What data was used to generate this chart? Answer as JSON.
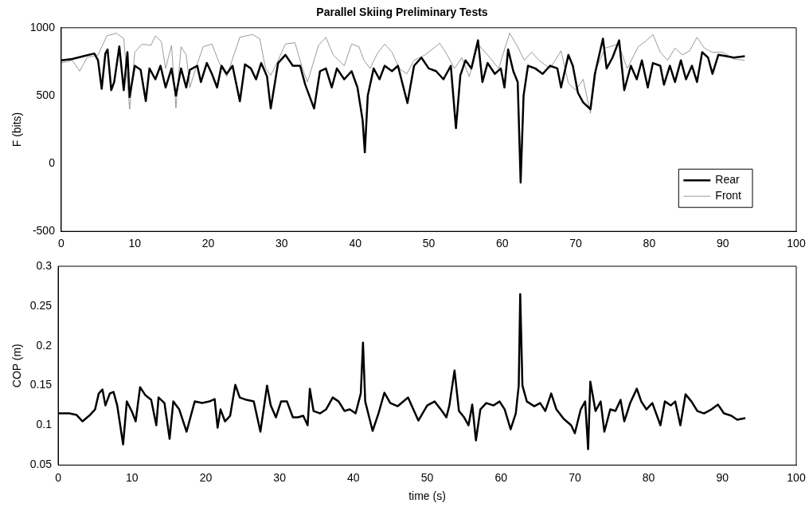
{
  "chart_data": [
    {
      "type": "line",
      "title": "Parallel Skiing Preliminary Tests",
      "ylabel": "F (bits)",
      "xlim": [
        0,
        100
      ],
      "xticks": [
        0,
        10,
        20,
        30,
        40,
        50,
        60,
        70,
        80,
        90,
        100
      ],
      "ylim": [
        -500,
        1000
      ],
      "yticks": [
        -500,
        0,
        500,
        1000
      ],
      "legend": "bottom right",
      "series": [
        {
          "name": "Rear",
          "color": "#000000",
          "x": [
            0,
            1.5,
            3,
            4.5,
            5,
            5.5,
            6,
            6.3,
            6.8,
            7.2,
            7.9,
            8.5,
            9,
            9.3,
            10,
            10.8,
            11.5,
            12,
            12.8,
            13.5,
            14.2,
            15,
            15.6,
            16.3,
            17,
            17.5,
            18.5,
            19,
            19.8,
            20.5,
            21.2,
            21.8,
            22.5,
            23.3,
            24.3,
            25,
            25.8,
            26.5,
            27.2,
            28,
            28.5,
            29.5,
            30.5,
            31.5,
            32.5,
            33.2,
            34.4,
            35.2,
            36,
            36.8,
            37.5,
            38.5,
            39.5,
            40.3,
            41,
            41.3,
            41.7,
            42.5,
            43.3,
            44,
            45,
            45.8,
            47.1,
            48,
            49,
            50,
            51,
            52,
            53,
            53.7,
            54.3,
            55,
            55.8,
            56.7,
            57.3,
            58,
            59,
            59.8,
            60.3,
            60.8,
            61.5,
            62.1,
            62.5,
            62.9,
            63.5,
            64.5,
            65.5,
            66.5,
            67.5,
            68,
            69,
            69.6,
            70.3,
            71,
            72,
            72.6,
            73.7,
            74.2,
            75,
            75.9,
            76.6,
            77.5,
            78.3,
            79,
            79.8,
            80.5,
            81.5,
            82,
            82.8,
            83.5,
            84.3,
            85,
            85.8,
            86.5,
            87.2,
            88,
            88.6,
            89.4,
            90.5,
            91.5,
            93
          ],
          "values": [
            760,
            770,
            790,
            810,
            760,
            550,
            810,
            840,
            540,
            600,
            862,
            540,
            820,
            490,
            720,
            690,
            460,
            700,
            620,
            720,
            560,
            700,
            500,
            700,
            560,
            690,
            720,
            600,
            740,
            660,
            560,
            720,
            660,
            720,
            458,
            730,
            700,
            620,
            740,
            640,
            405,
            740,
            800,
            720,
            720,
            580,
            405,
            680,
            700,
            560,
            700,
            620,
            680,
            560,
            320,
            82,
            500,
            700,
            620,
            720,
            680,
            720,
            445,
            720,
            780,
            700,
            680,
            620,
            720,
            260,
            650,
            760,
            700,
            907,
            600,
            740,
            660,
            700,
            560,
            840,
            680,
            600,
            -140,
            500,
            720,
            700,
            660,
            720,
            700,
            560,
            800,
            720,
            520,
            450,
            400,
            660,
            920,
            700,
            780,
            907,
            540,
            720,
            620,
            760,
            560,
            740,
            720,
            580,
            720,
            600,
            760,
            620,
            720,
            600,
            820,
            780,
            660,
            800,
            790,
            780,
            790
          ]
        },
        {
          "name": "Front",
          "color": "#808080",
          "x": [
            0,
            1.5,
            2.5,
            3.5,
            5,
            6.2,
            7.5,
            8.5,
            9.3,
            10,
            11,
            12.2,
            12.8,
            13.6,
            14.2,
            15,
            15.6,
            16.3,
            17,
            17.5,
            18.3,
            19.3,
            20.5,
            21.5,
            22.5,
            24.3,
            26,
            27,
            27.8,
            28.5,
            29.5,
            30.5,
            31.8,
            32.7,
            33.5,
            35,
            36,
            37,
            38.5,
            39.5,
            40.5,
            41.2,
            42,
            43,
            44,
            45,
            46,
            47,
            48,
            49.5,
            51.5,
            52.5,
            53.5,
            54.5,
            55.5,
            56.7,
            58,
            59.5,
            61,
            62,
            63,
            64,
            65,
            66.5,
            68,
            69,
            70,
            71,
            72,
            72.8,
            74,
            75.8,
            77,
            78.5,
            79.5,
            80.5,
            81.5,
            82.5,
            83.5,
            84.5,
            85.5,
            86.5,
            87.5,
            88.5,
            90,
            91.5,
            93
          ],
          "values": [
            740,
            760,
            680,
            780,
            800,
            940,
            960,
            920,
            400,
            820,
            880,
            870,
            940,
            900,
            700,
            870,
            410,
            860,
            800,
            560,
            700,
            860,
            880,
            740,
            640,
            930,
            950,
            920,
            700,
            650,
            760,
            880,
            890,
            720,
            600,
            870,
            930,
            800,
            720,
            880,
            860,
            760,
            700,
            810,
            880,
            820,
            700,
            660,
            760,
            800,
            886,
            800,
            700,
            780,
            640,
            880,
            800,
            700,
            960,
            870,
            760,
            820,
            760,
            700,
            830,
            590,
            540,
            620,
            371,
            700,
            850,
            880,
            700,
            860,
            900,
            950,
            820,
            760,
            850,
            800,
            830,
            930,
            850,
            820,
            820,
            770,
            760
          ]
        }
      ]
    },
    {
      "type": "line",
      "xlabel": "time (s)",
      "ylabel": "COP (m)",
      "xlim": [
        0,
        100
      ],
      "xticks": [
        0,
        10,
        20,
        30,
        40,
        50,
        60,
        70,
        80,
        90,
        100
      ],
      "ylim": [
        0.05,
        0.3
      ],
      "yticks": [
        0.05,
        0.1,
        0.15,
        0.2,
        0.25,
        0.3
      ],
      "series": [
        {
          "color": "#000000",
          "x": [
            0,
            1.5,
            2.5,
            3.3,
            4.2,
            5,
            5.5,
            6,
            6.4,
            7,
            7.5,
            8,
            8.8,
            9.3,
            10,
            10.5,
            11.1,
            11.8,
            12.6,
            13.3,
            13.6,
            14.4,
            15.1,
            15.6,
            16.4,
            17.4,
            18.5,
            19.5,
            20.5,
            21.2,
            21.6,
            22,
            22.6,
            23.3,
            24,
            24.6,
            25.5,
            26.5,
            27.4,
            28.3,
            28.8,
            29.5,
            30.2,
            31,
            31.8,
            32.5,
            33.2,
            33.8,
            34.1,
            34.6,
            35.5,
            36.3,
            37.2,
            38,
            38.8,
            39.5,
            40.3,
            41,
            41.3,
            41.6,
            42.6,
            43.4,
            44.2,
            45,
            46,
            47.4,
            48.8,
            50,
            51,
            52,
            52.6,
            53,
            53.7,
            54.3,
            55,
            55.6,
            56.1,
            56.6,
            57.2,
            58,
            59,
            59.8,
            60.5,
            61.3,
            62,
            62.4,
            62.6,
            62.9,
            63.5,
            64.5,
            65.3,
            66,
            66.8,
            67.5,
            68.5,
            69.5,
            70,
            70.8,
            71.4,
            71.8,
            72.1,
            72.8,
            73.5,
            74,
            74.8,
            75.5,
            76.2,
            76.7,
            77.5,
            78.4,
            79,
            79.7,
            80.5,
            81.6,
            82.2,
            83,
            83.6,
            84.3,
            85,
            85.8,
            86.6,
            87.5,
            88.5,
            89.4,
            90.2,
            91.2,
            92,
            93.1
          ],
          "values": [
            0.115,
            0.115,
            0.113,
            0.105,
            0.112,
            0.12,
            0.14,
            0.145,
            0.125,
            0.14,
            0.142,
            0.125,
            0.076,
            0.13,
            0.117,
            0.105,
            0.148,
            0.138,
            0.132,
            0.1,
            0.135,
            0.128,
            0.083,
            0.13,
            0.12,
            0.092,
            0.13,
            0.128,
            0.13,
            0.133,
            0.097,
            0.12,
            0.105,
            0.112,
            0.151,
            0.135,
            0.132,
            0.13,
            0.092,
            0.15,
            0.125,
            0.11,
            0.13,
            0.13,
            0.11,
            0.11,
            0.112,
            0.1,
            0.146,
            0.118,
            0.115,
            0.12,
            0.135,
            0.13,
            0.118,
            0.12,
            0.115,
            0.14,
            0.204,
            0.13,
            0.093,
            0.115,
            0.141,
            0.128,
            0.124,
            0.135,
            0.106,
            0.125,
            0.13,
            0.118,
            0.11,
            0.125,
            0.169,
            0.118,
            0.11,
            0.1,
            0.126,
            0.081,
            0.12,
            0.128,
            0.125,
            0.13,
            0.12,
            0.095,
            0.115,
            0.15,
            0.265,
            0.15,
            0.13,
            0.124,
            0.128,
            0.118,
            0.14,
            0.12,
            0.108,
            0.1,
            0.09,
            0.12,
            0.13,
            0.07,
            0.155,
            0.118,
            0.13,
            0.092,
            0.12,
            0.118,
            0.132,
            0.105,
            0.128,
            0.146,
            0.13,
            0.12,
            0.128,
            0.1,
            0.13,
            0.125,
            0.13,
            0.1,
            0.139,
            0.13,
            0.118,
            0.115,
            0.12,
            0.126,
            0.115,
            0.112,
            0.107,
            0.109
          ]
        }
      ]
    }
  ]
}
